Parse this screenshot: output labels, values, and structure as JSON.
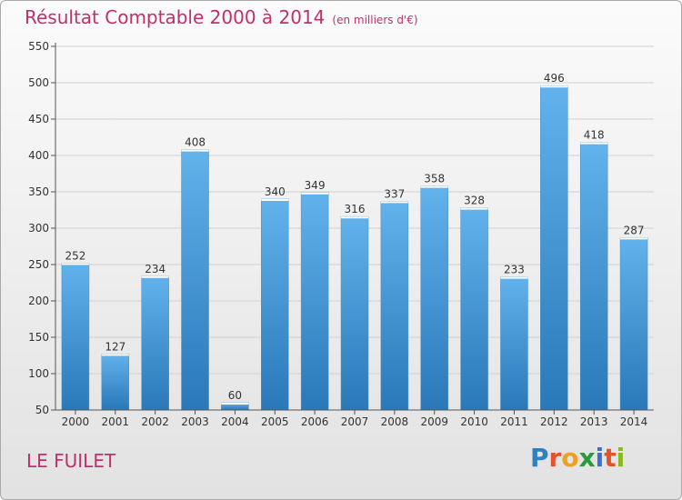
{
  "header": {
    "title": "Résultat Comptable 2000 à 2014",
    "subtitle": "(en milliers d'€)"
  },
  "footer": {
    "place": "LE FUILET",
    "logo": "Proxiti"
  },
  "colors": {
    "bar_light": "#62b2ec",
    "bar_dark": "#2a78b8",
    "title": "#c0306a",
    "axis": "#555555"
  },
  "chart_data": {
    "type": "bar",
    "categories": [
      "2000",
      "2001",
      "2002",
      "2003",
      "2004",
      "2005",
      "2006",
      "2007",
      "2008",
      "2009",
      "2010",
      "2011",
      "2012",
      "2013",
      "2014"
    ],
    "values": [
      252,
      127,
      234,
      408,
      60,
      340,
      349,
      316,
      337,
      358,
      328,
      233,
      496,
      418,
      287
    ],
    "title": "Résultat Comptable 2000 à 2014",
    "ylim": [
      50,
      550
    ],
    "yticks": [
      50,
      100,
      150,
      200,
      250,
      300,
      350,
      400,
      450,
      500,
      550
    ],
    "grid": true
  }
}
